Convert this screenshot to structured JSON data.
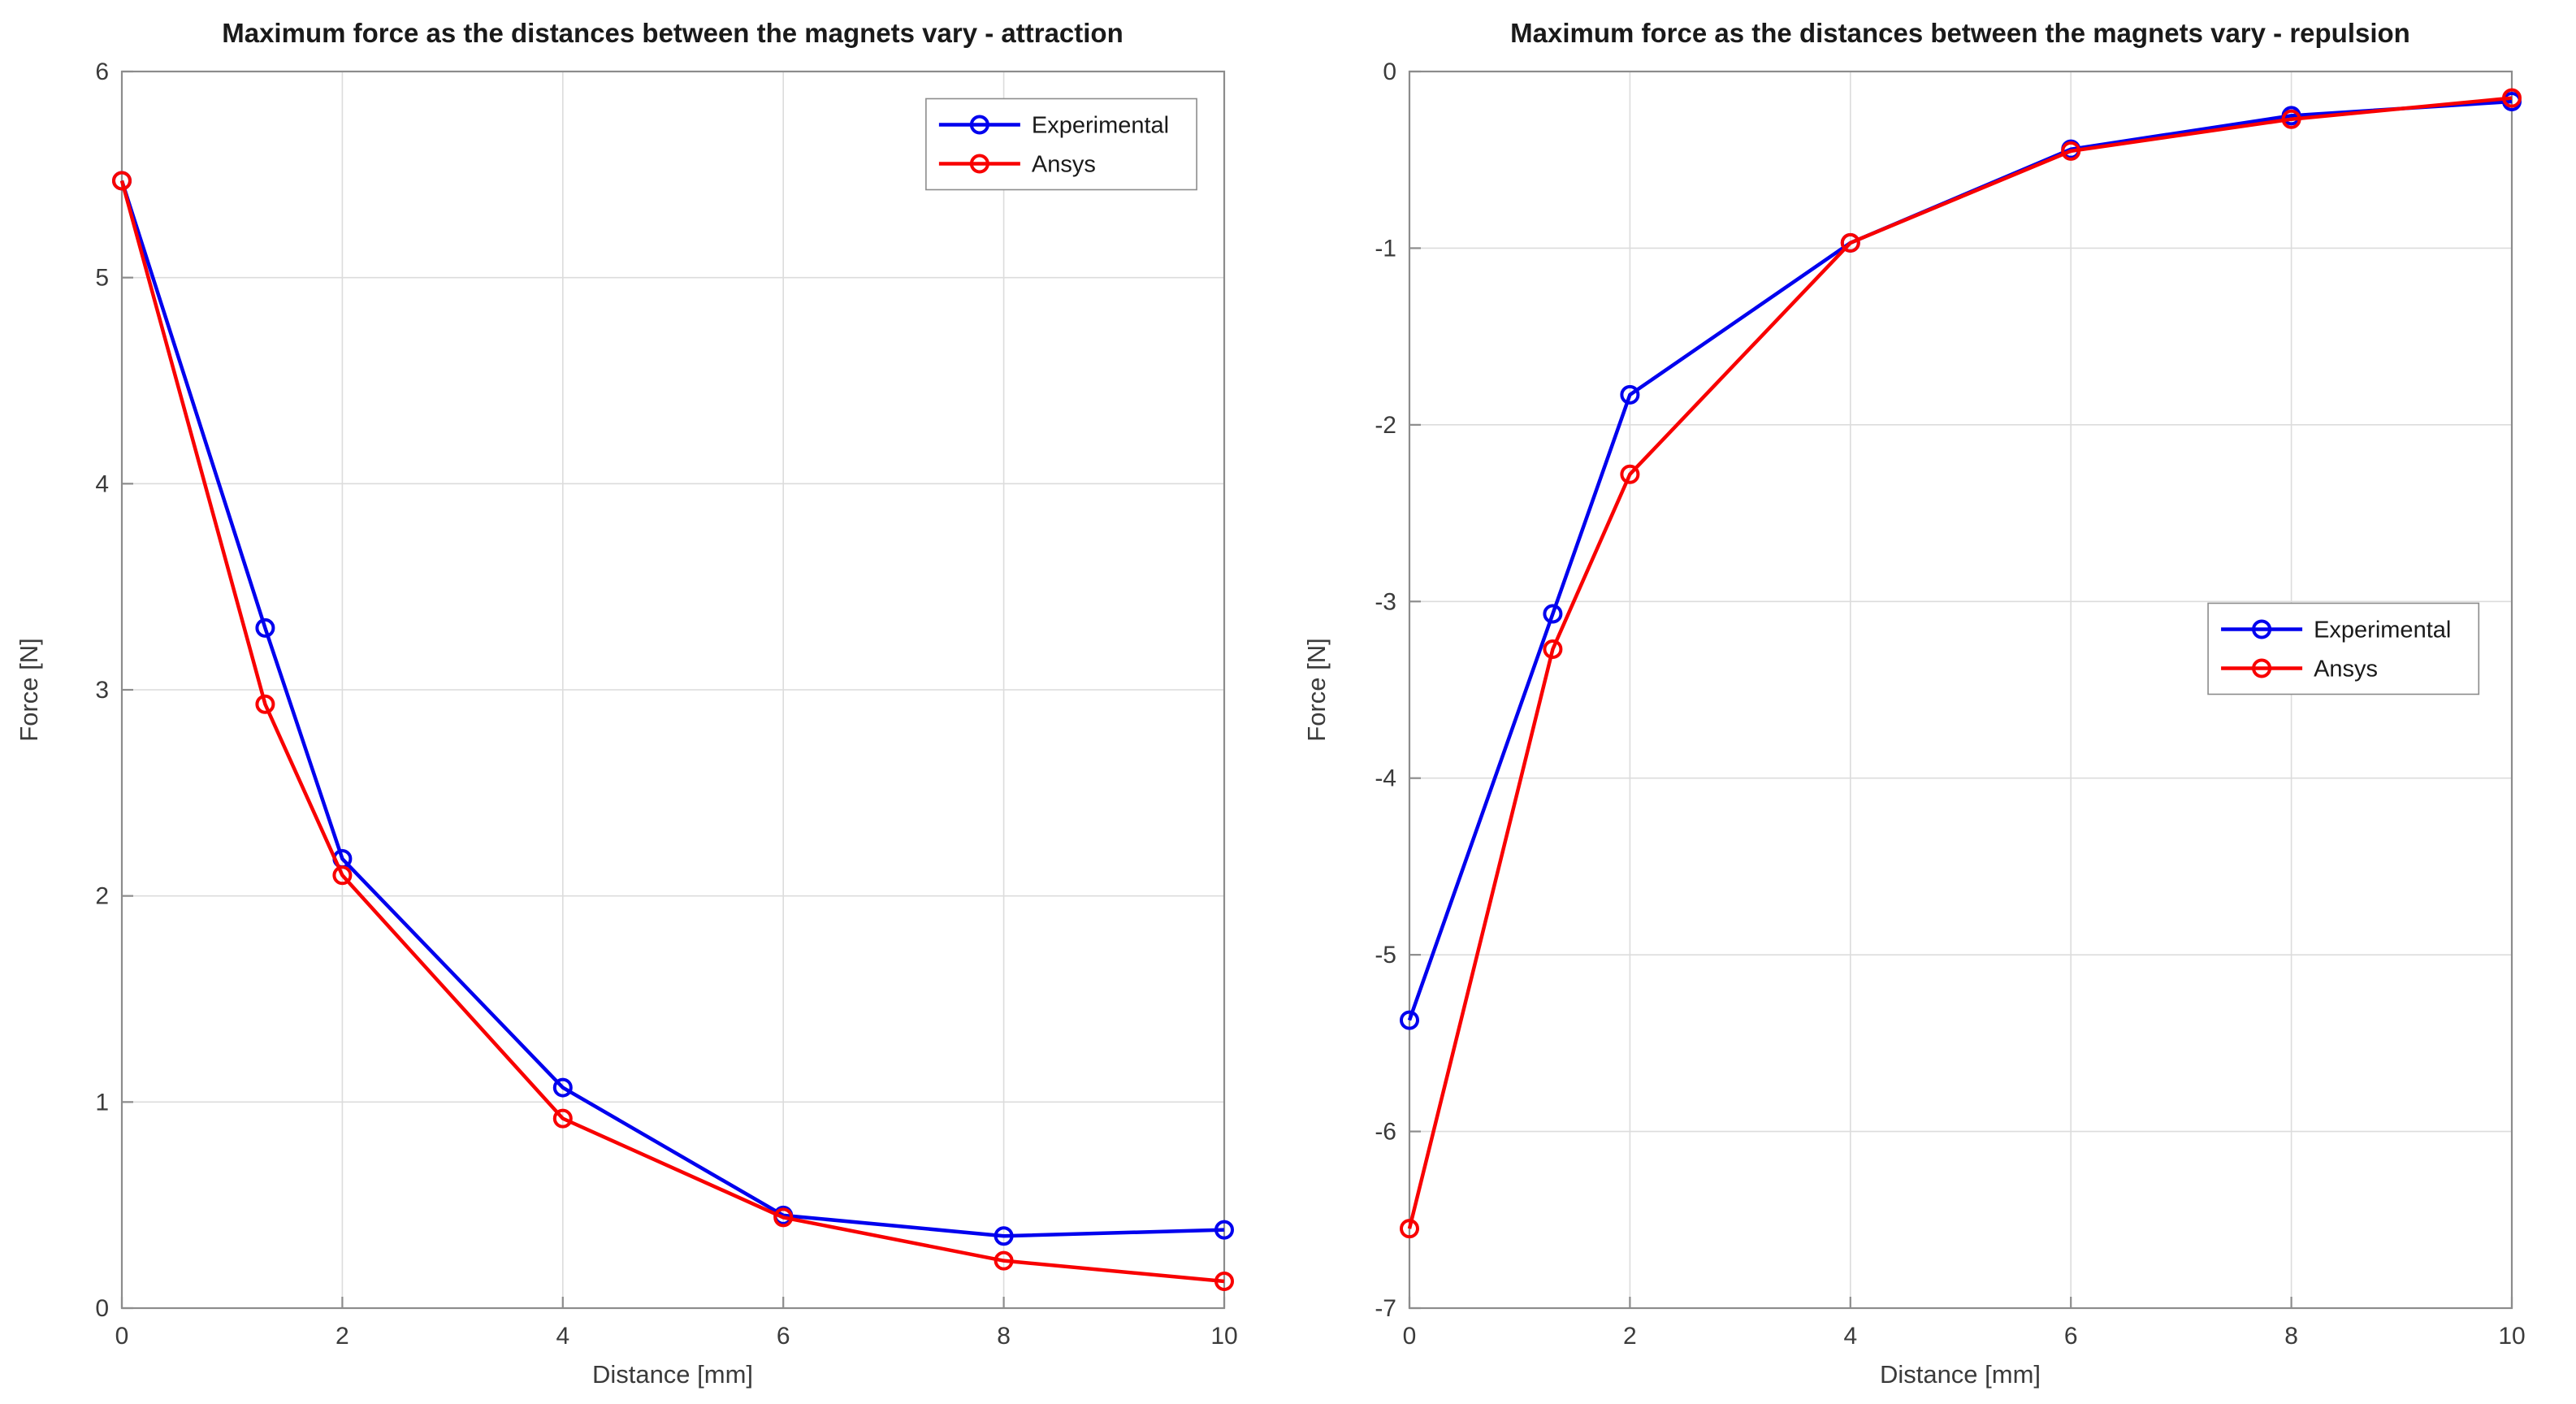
{
  "page": {
    "background": "#ffffff"
  },
  "charts_meta": {
    "left_title": "Maximum force as the distances between the magnets vary - attraction",
    "right_title": "Maximum force as the distances between the magnets vary - repulsion",
    "legend_labels": [
      "Experimental",
      "Ansys"
    ],
    "series_colors": {
      "experimental": "#0000ee",
      "ansys": "#f80000"
    }
  },
  "chart_data": [
    {
      "type": "line",
      "title": "Maximum force as the distances between the magnets vary - attraction",
      "xlabel": "Distance [mm]",
      "ylabel": "Force [N]",
      "xlim": [
        0,
        10
      ],
      "ylim": [
        0,
        6
      ],
      "xticks": [
        0,
        2,
        4,
        6,
        8,
        10
      ],
      "yticks": [
        0,
        1,
        2,
        3,
        4,
        5,
        6
      ],
      "grid": true,
      "x": [
        0,
        1.3,
        2,
        4,
        6,
        8,
        10
      ],
      "series": [
        {
          "name": "Experimental",
          "color": "#0000ee",
          "marker": "o",
          "values": [
            5.47,
            3.3,
            2.18,
            1.07,
            0.45,
            0.35,
            0.38
          ]
        },
        {
          "name": "Ansys",
          "color": "#f80000",
          "marker": "o",
          "values": [
            5.47,
            2.93,
            2.1,
            0.92,
            0.44,
            0.23,
            0.13
          ]
        }
      ],
      "legend_position": "upper right inside",
      "legend": {
        "loc_x": 0.975,
        "loc_y": 0.022
      }
    },
    {
      "type": "line",
      "title": "Maximum force as the distances between the magnets vary - repulsion",
      "xlabel": "Distance [mm]",
      "ylabel": "Force [N]",
      "xlim": [
        0,
        10
      ],
      "ylim": [
        -7,
        0
      ],
      "xticks": [
        0,
        2,
        4,
        6,
        8,
        10
      ],
      "yticks": [
        -7,
        -6,
        -5,
        -4,
        -3,
        -2,
        -1,
        0
      ],
      "grid": true,
      "x": [
        0,
        1.3,
        2,
        4,
        6,
        8,
        10
      ],
      "series": [
        {
          "name": "Experimental",
          "color": "#0000ee",
          "marker": "o",
          "values": [
            -5.37,
            -3.07,
            -1.83,
            -0.97,
            -0.44,
            -0.25,
            -0.17
          ]
        },
        {
          "name": "Ansys",
          "color": "#f80000",
          "marker": "o",
          "values": [
            -6.55,
            -3.27,
            -2.28,
            -0.97,
            -0.45,
            -0.27,
            -0.15
          ]
        }
      ],
      "legend_position": "middle right inside",
      "legend": {
        "loc_x": 0.97,
        "loc_y": 0.43
      }
    }
  ]
}
